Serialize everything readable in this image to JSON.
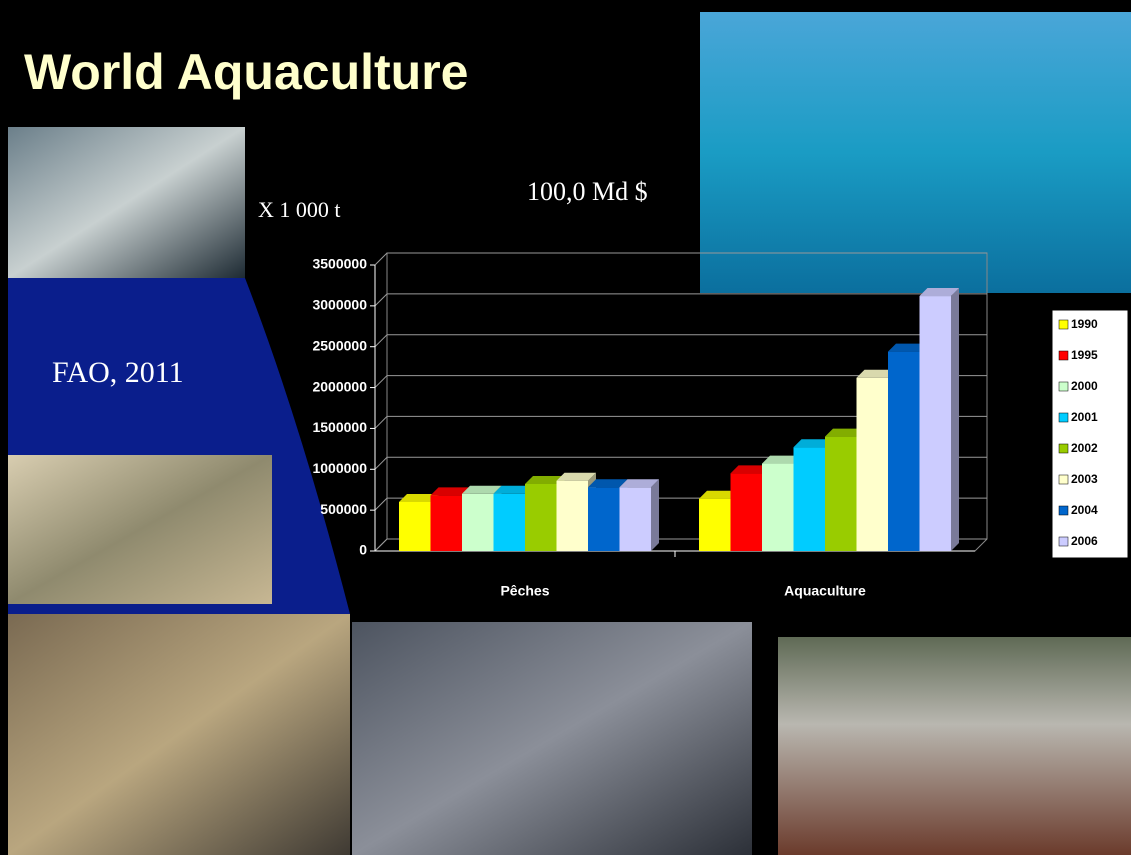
{
  "title": "World Aquaculture",
  "annotations": [
    "X 1 000 t",
    "100,0 Md $",
    "FAO, 2011"
  ],
  "chart_data": {
    "type": "bar",
    "categories": [
      "Pêches",
      "Aquaculture"
    ],
    "series": [
      {
        "name": "1990",
        "color": "#ffff00",
        "values": [
          600000,
          640000
        ]
      },
      {
        "name": "1995",
        "color": "#ff0000",
        "values": [
          680000,
          950000
        ]
      },
      {
        "name": "2000",
        "color": "#ccffcc",
        "values": [
          700000,
          1070000
        ]
      },
      {
        "name": "2001",
        "color": "#00ccff",
        "values": [
          700000,
          1270000
        ]
      },
      {
        "name": "2002",
        "color": "#99cc00",
        "values": [
          820000,
          1400000
        ]
      },
      {
        "name": "2003",
        "color": "#ffffcc",
        "values": [
          860000,
          2120000
        ]
      },
      {
        "name": "2004",
        "color": "#0066cc",
        "values": [
          780000,
          2440000
        ]
      },
      {
        "name": "2006",
        "color": "#ccccff",
        "values": [
          780000,
          3120000
        ]
      }
    ],
    "ylim": [
      0,
      3500000
    ],
    "yticks": [
      0,
      500000,
      1000000,
      1500000,
      2000000,
      2500000,
      3000000,
      3500000
    ],
    "grid": true,
    "legend": "right"
  }
}
